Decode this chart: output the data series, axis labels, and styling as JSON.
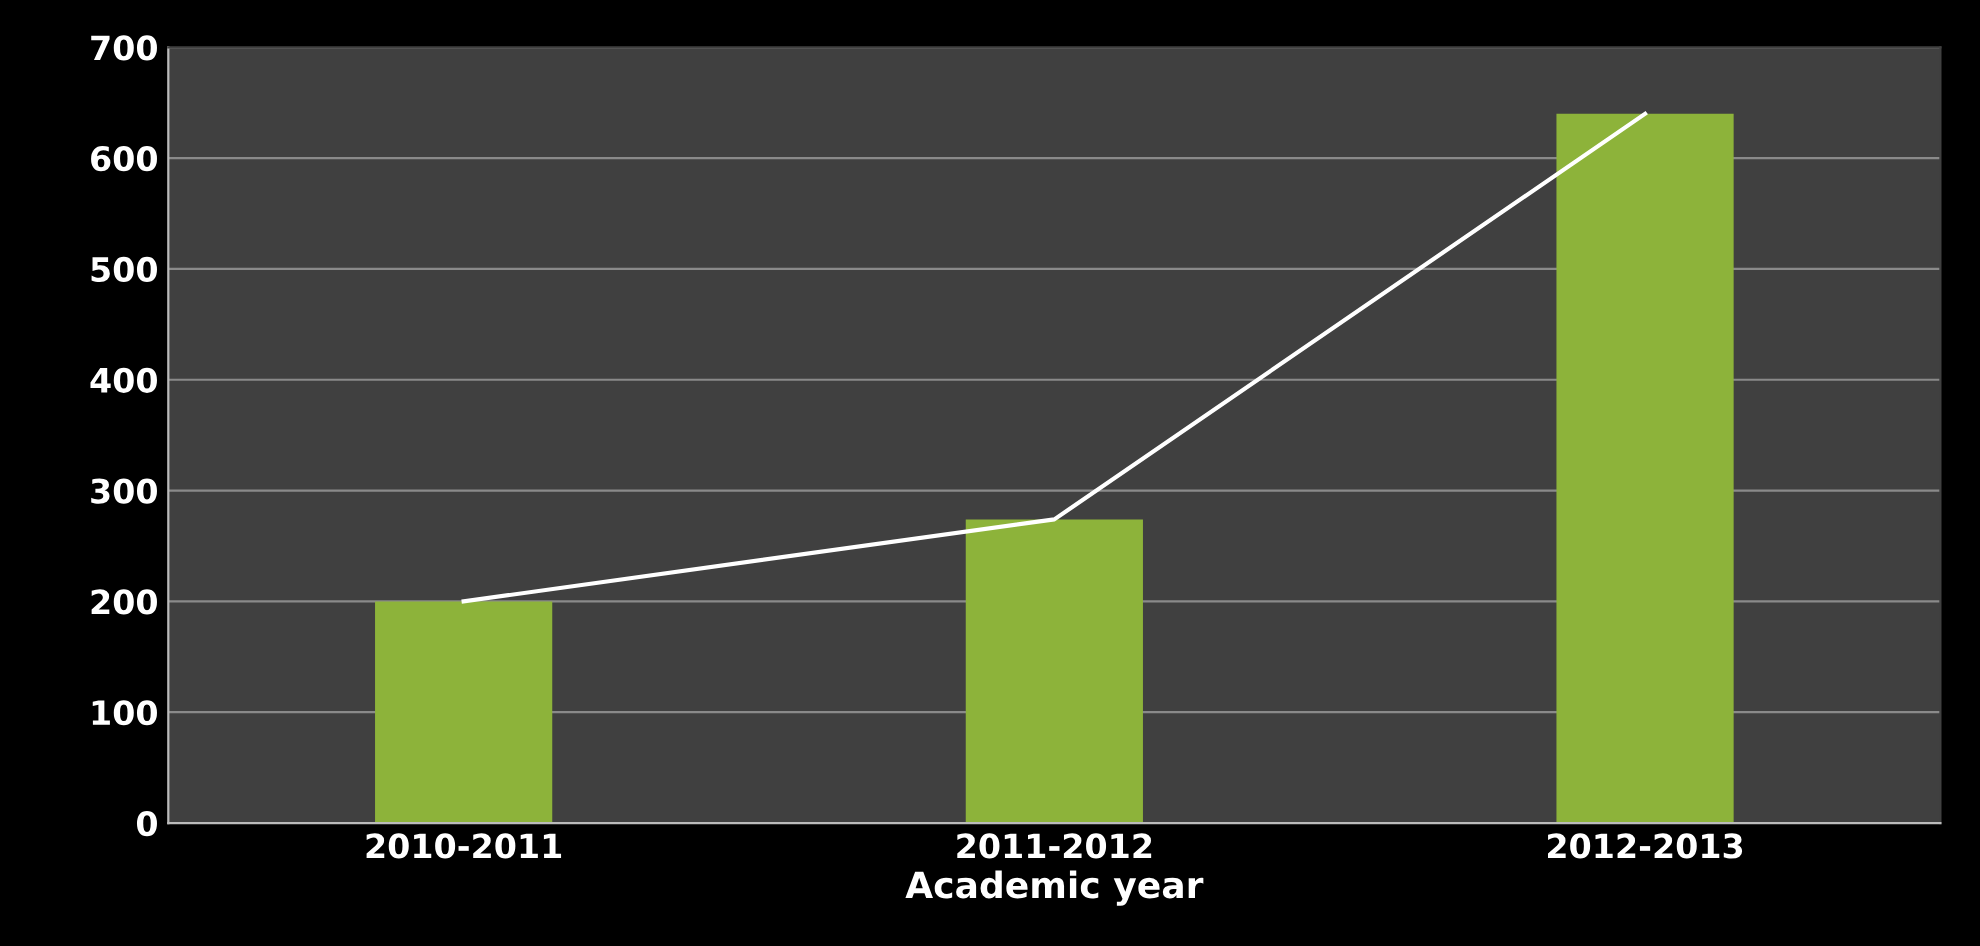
{
  "chart_data": {
    "type": "bar",
    "xlabel": "Academic year",
    "categories": [
      "2010-2011",
      "2011-2012",
      "2012-2013"
    ],
    "series": [
      {
        "color": "#8db33a",
        "values": [
          200,
          274,
          640
        ]
      },
      {
        "type": "line",
        "color": "#ffffff",
        "values": [
          200,
          274,
          640
        ]
      }
    ],
    "ylim": [
      0,
      700
    ],
    "yticks": [
      0,
      100,
      200,
      300,
      400,
      500,
      600,
      700
    ],
    "grid": "y"
  }
}
